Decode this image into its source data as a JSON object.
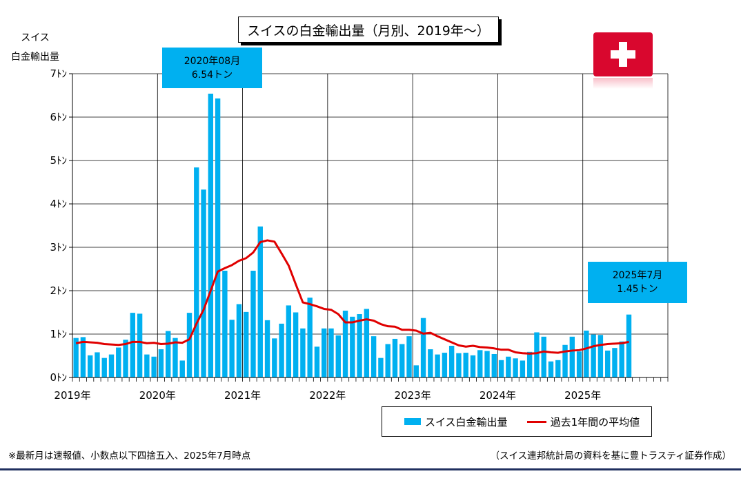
{
  "title": "スイスの白金輸出量（月別、2019年～）",
  "y_axis_label_line1": "スイス",
  "y_axis_label_line2": "白金輸出量",
  "callouts": {
    "peak": {
      "line1": "2020年08月",
      "line2": "6.54トン"
    },
    "latest": {
      "line1": "2025年7月",
      "line2": "1.45トン"
    }
  },
  "legend": {
    "bar_label": "スイス白金輸出量",
    "line_label": "過去1年間の平均値"
  },
  "footnote_left": "※最新月は速報値、小数点以下四捨五入、2025年7月時点",
  "footnote_right": "（スイス連邦統計局の資料を基に豊トラスティ証券作成）",
  "flag_icon": "swiss-flag-icon",
  "colors": {
    "bar": "#00B0F0",
    "line": "#E00000",
    "flag": "#D9072E"
  },
  "chart_data": {
    "type": "bar",
    "title": "スイスの白金輸出量（月別、2019年～）",
    "ylabel": "スイス 白金輸出量",
    "ylim": [
      0,
      7
    ],
    "y_unit": "ﾄﾝ",
    "yticks": [
      0,
      1,
      2,
      3,
      4,
      5,
      6,
      7
    ],
    "ytick_labels": [
      "0ﾄﾝ",
      "1ﾄﾝ",
      "2ﾄﾝ",
      "3ﾄﾝ",
      "4ﾄﾝ",
      "5ﾄﾝ",
      "6ﾄﾝ",
      "7ﾄﾝ"
    ],
    "x_year_labels": [
      "2019年",
      "2020年",
      "2021年",
      "2022年",
      "2023年",
      "2024年",
      "2025年"
    ],
    "x_months_total": 84,
    "grid": true,
    "legend_position": "bottom-right",
    "categories": [
      "2019-01",
      "2019-02",
      "2019-03",
      "2019-04",
      "2019-05",
      "2019-06",
      "2019-07",
      "2019-08",
      "2019-09",
      "2019-10",
      "2019-11",
      "2019-12",
      "2020-01",
      "2020-02",
      "2020-03",
      "2020-04",
      "2020-05",
      "2020-06",
      "2020-07",
      "2020-08",
      "2020-09",
      "2020-10",
      "2020-11",
      "2020-12",
      "2021-01",
      "2021-02",
      "2021-03",
      "2021-04",
      "2021-05",
      "2021-06",
      "2021-07",
      "2021-08",
      "2021-09",
      "2021-10",
      "2021-11",
      "2021-12",
      "2022-01",
      "2022-02",
      "2022-03",
      "2022-04",
      "2022-05",
      "2022-06",
      "2022-07",
      "2022-08",
      "2022-09",
      "2022-10",
      "2022-11",
      "2022-12",
      "2023-01",
      "2023-02",
      "2023-03",
      "2023-04",
      "2023-05",
      "2023-06",
      "2023-07",
      "2023-08",
      "2023-09",
      "2023-10",
      "2023-11",
      "2023-12",
      "2024-01",
      "2024-02",
      "2024-03",
      "2024-04",
      "2024-05",
      "2024-06",
      "2024-07",
      "2024-08",
      "2024-09",
      "2024-10",
      "2024-11",
      "2024-12",
      "2025-01",
      "2025-02",
      "2025-03",
      "2025-04",
      "2025-05",
      "2025-06",
      "2025-07"
    ],
    "series": [
      {
        "name": "スイス白金輸出量",
        "type": "bar",
        "values": [
          0.91,
          0.93,
          0.51,
          0.58,
          0.45,
          0.53,
          0.69,
          0.87,
          1.49,
          1.47,
          0.53,
          0.48,
          0.65,
          1.07,
          0.91,
          0.39,
          1.49,
          4.84,
          4.33,
          6.54,
          6.43,
          2.46,
          1.33,
          1.69,
          1.51,
          2.46,
          3.48,
          1.32,
          0.9,
          1.24,
          1.66,
          1.5,
          1.13,
          1.84,
          0.71,
          1.13,
          1.13,
          0.97,
          1.54,
          1.4,
          1.46,
          1.58,
          0.95,
          0.45,
          0.77,
          0.89,
          0.77,
          0.95,
          0.28,
          1.37,
          0.65,
          0.53,
          0.57,
          0.73,
          0.56,
          0.57,
          0.51,
          0.63,
          0.61,
          0.54,
          0.4,
          0.48,
          0.44,
          0.39,
          0.59,
          1.04,
          0.94,
          0.37,
          0.4,
          0.75,
          0.94,
          0.6,
          1.08,
          0.99,
          0.98,
          0.62,
          0.68,
          0.83,
          1.45
        ]
      },
      {
        "name": "過去1年間の平均値",
        "type": "line",
        "values": [
          0.79,
          0.82,
          0.81,
          0.8,
          0.77,
          0.76,
          0.75,
          0.77,
          0.82,
          0.82,
          0.79,
          0.8,
          0.77,
          0.78,
          0.81,
          0.8,
          0.88,
          1.24,
          1.56,
          2.0,
          2.44,
          2.52,
          2.59,
          2.69,
          2.75,
          2.88,
          3.12,
          3.16,
          3.13,
          2.86,
          2.58,
          2.15,
          1.73,
          1.69,
          1.64,
          1.58,
          1.56,
          1.46,
          1.27,
          1.27,
          1.31,
          1.34,
          1.31,
          1.23,
          1.18,
          1.17,
          1.1,
          1.1,
          1.08,
          1.01,
          1.03,
          0.95,
          0.88,
          0.81,
          0.74,
          0.71,
          0.73,
          0.7,
          0.69,
          0.67,
          0.64,
          0.64,
          0.58,
          0.56,
          0.55,
          0.56,
          0.6,
          0.58,
          0.57,
          0.6,
          0.62,
          0.63,
          0.67,
          0.72,
          0.75,
          0.77,
          0.78,
          0.79,
          0.82
        ]
      }
    ]
  }
}
